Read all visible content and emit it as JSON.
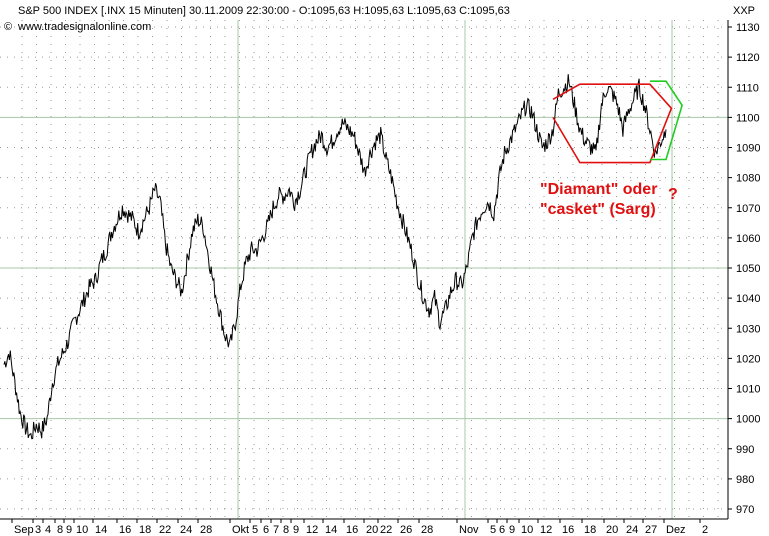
{
  "header": {
    "title": "S&P 500 INDEX [.INX  15 Minuten] 30.11.2009 22:30:00 - O:1095,63 H:1095,63 L:1095,63 C:1095,63",
    "source": "www.tradesignalonline.com",
    "axis_code": "XXP"
  },
  "chart_data": {
    "type": "line",
    "title": "S&P 500 INDEX [.INX  15 Minuten]",
    "ylim": [
      965,
      1135
    ],
    "y_ticks": [
      970,
      980,
      990,
      1000,
      1010,
      1020,
      1030,
      1040,
      1050,
      1060,
      1070,
      1080,
      1090,
      1100,
      1110,
      1120,
      1130
    ],
    "grid": true,
    "x_ticks": [
      "Sep",
      "3",
      "4",
      "8",
      "9",
      "10",
      "14",
      "16",
      "18",
      "22",
      "24",
      "28",
      "Okt",
      "5",
      "6",
      "7",
      "8",
      "9",
      "12",
      "14",
      "16",
      "20",
      "22",
      "26",
      "28",
      "Nov",
      "5",
      "6",
      "9",
      "10",
      "12",
      "16",
      "18",
      "20",
      "24",
      "27",
      "Dez",
      "2"
    ],
    "series": [
      {
        "values": [
          1018,
          1022,
          1012,
          1002,
          997,
          994,
          998,
          996,
          1000,
          1012,
          1018,
          1022,
          1026,
          1032,
          1036,
          1040,
          1044,
          1046,
          1052,
          1056,
          1062,
          1066,
          1070,
          1068,
          1066,
          1062,
          1066,
          1070,
          1076,
          1072,
          1058,
          1050,
          1046,
          1042,
          1052,
          1062,
          1066,
          1064,
          1054,
          1044,
          1036,
          1028,
          1024,
          1032,
          1044,
          1052,
          1056,
          1056,
          1060,
          1064,
          1070,
          1074,
          1074,
          1076,
          1072,
          1076,
          1082,
          1088,
          1092,
          1094,
          1090,
          1092,
          1096,
          1098,
          1096,
          1094,
          1088,
          1082,
          1088,
          1092,
          1094,
          1086,
          1080,
          1072,
          1066,
          1060,
          1054,
          1046,
          1040,
          1036,
          1040,
          1032,
          1036,
          1042,
          1046,
          1044,
          1050,
          1060,
          1066,
          1070,
          1072,
          1068,
          1080,
          1088,
          1092,
          1096,
          1100,
          1104,
          1102,
          1096,
          1090,
          1092,
          1096,
          1108,
          1110,
          1112,
          1104,
          1096,
          1092,
          1090,
          1088,
          1104,
          1110,
          1108,
          1104,
          1096,
          1102,
          1106,
          1110,
          1104,
          1096,
          1088,
          1092,
          1096
        ]
      }
    ],
    "annotations": [
      {
        "text": "\"Diamant\" oder",
        "color": "#e01010"
      },
      {
        "text": "\"casket\" (Sarg)",
        "color": "#e01010"
      },
      {
        "text": "?",
        "color": "#e01010"
      }
    ],
    "shapes": [
      {
        "name": "diamond-pattern",
        "color": "#e01010",
        "points": [
          [
            102,
            1106
          ],
          [
            107,
            1111
          ],
          [
            120,
            1111
          ],
          [
            124,
            1103
          ],
          [
            120,
            1085
          ],
          [
            107,
            1085
          ],
          [
            102,
            1100
          ]
        ]
      },
      {
        "name": "projection-pattern",
        "color": "#22cc22",
        "points": [
          [
            120,
            1112
          ],
          [
            123,
            1112
          ],
          [
            126,
            1104
          ],
          [
            123,
            1086
          ],
          [
            120,
            1086
          ]
        ]
      }
    ]
  }
}
